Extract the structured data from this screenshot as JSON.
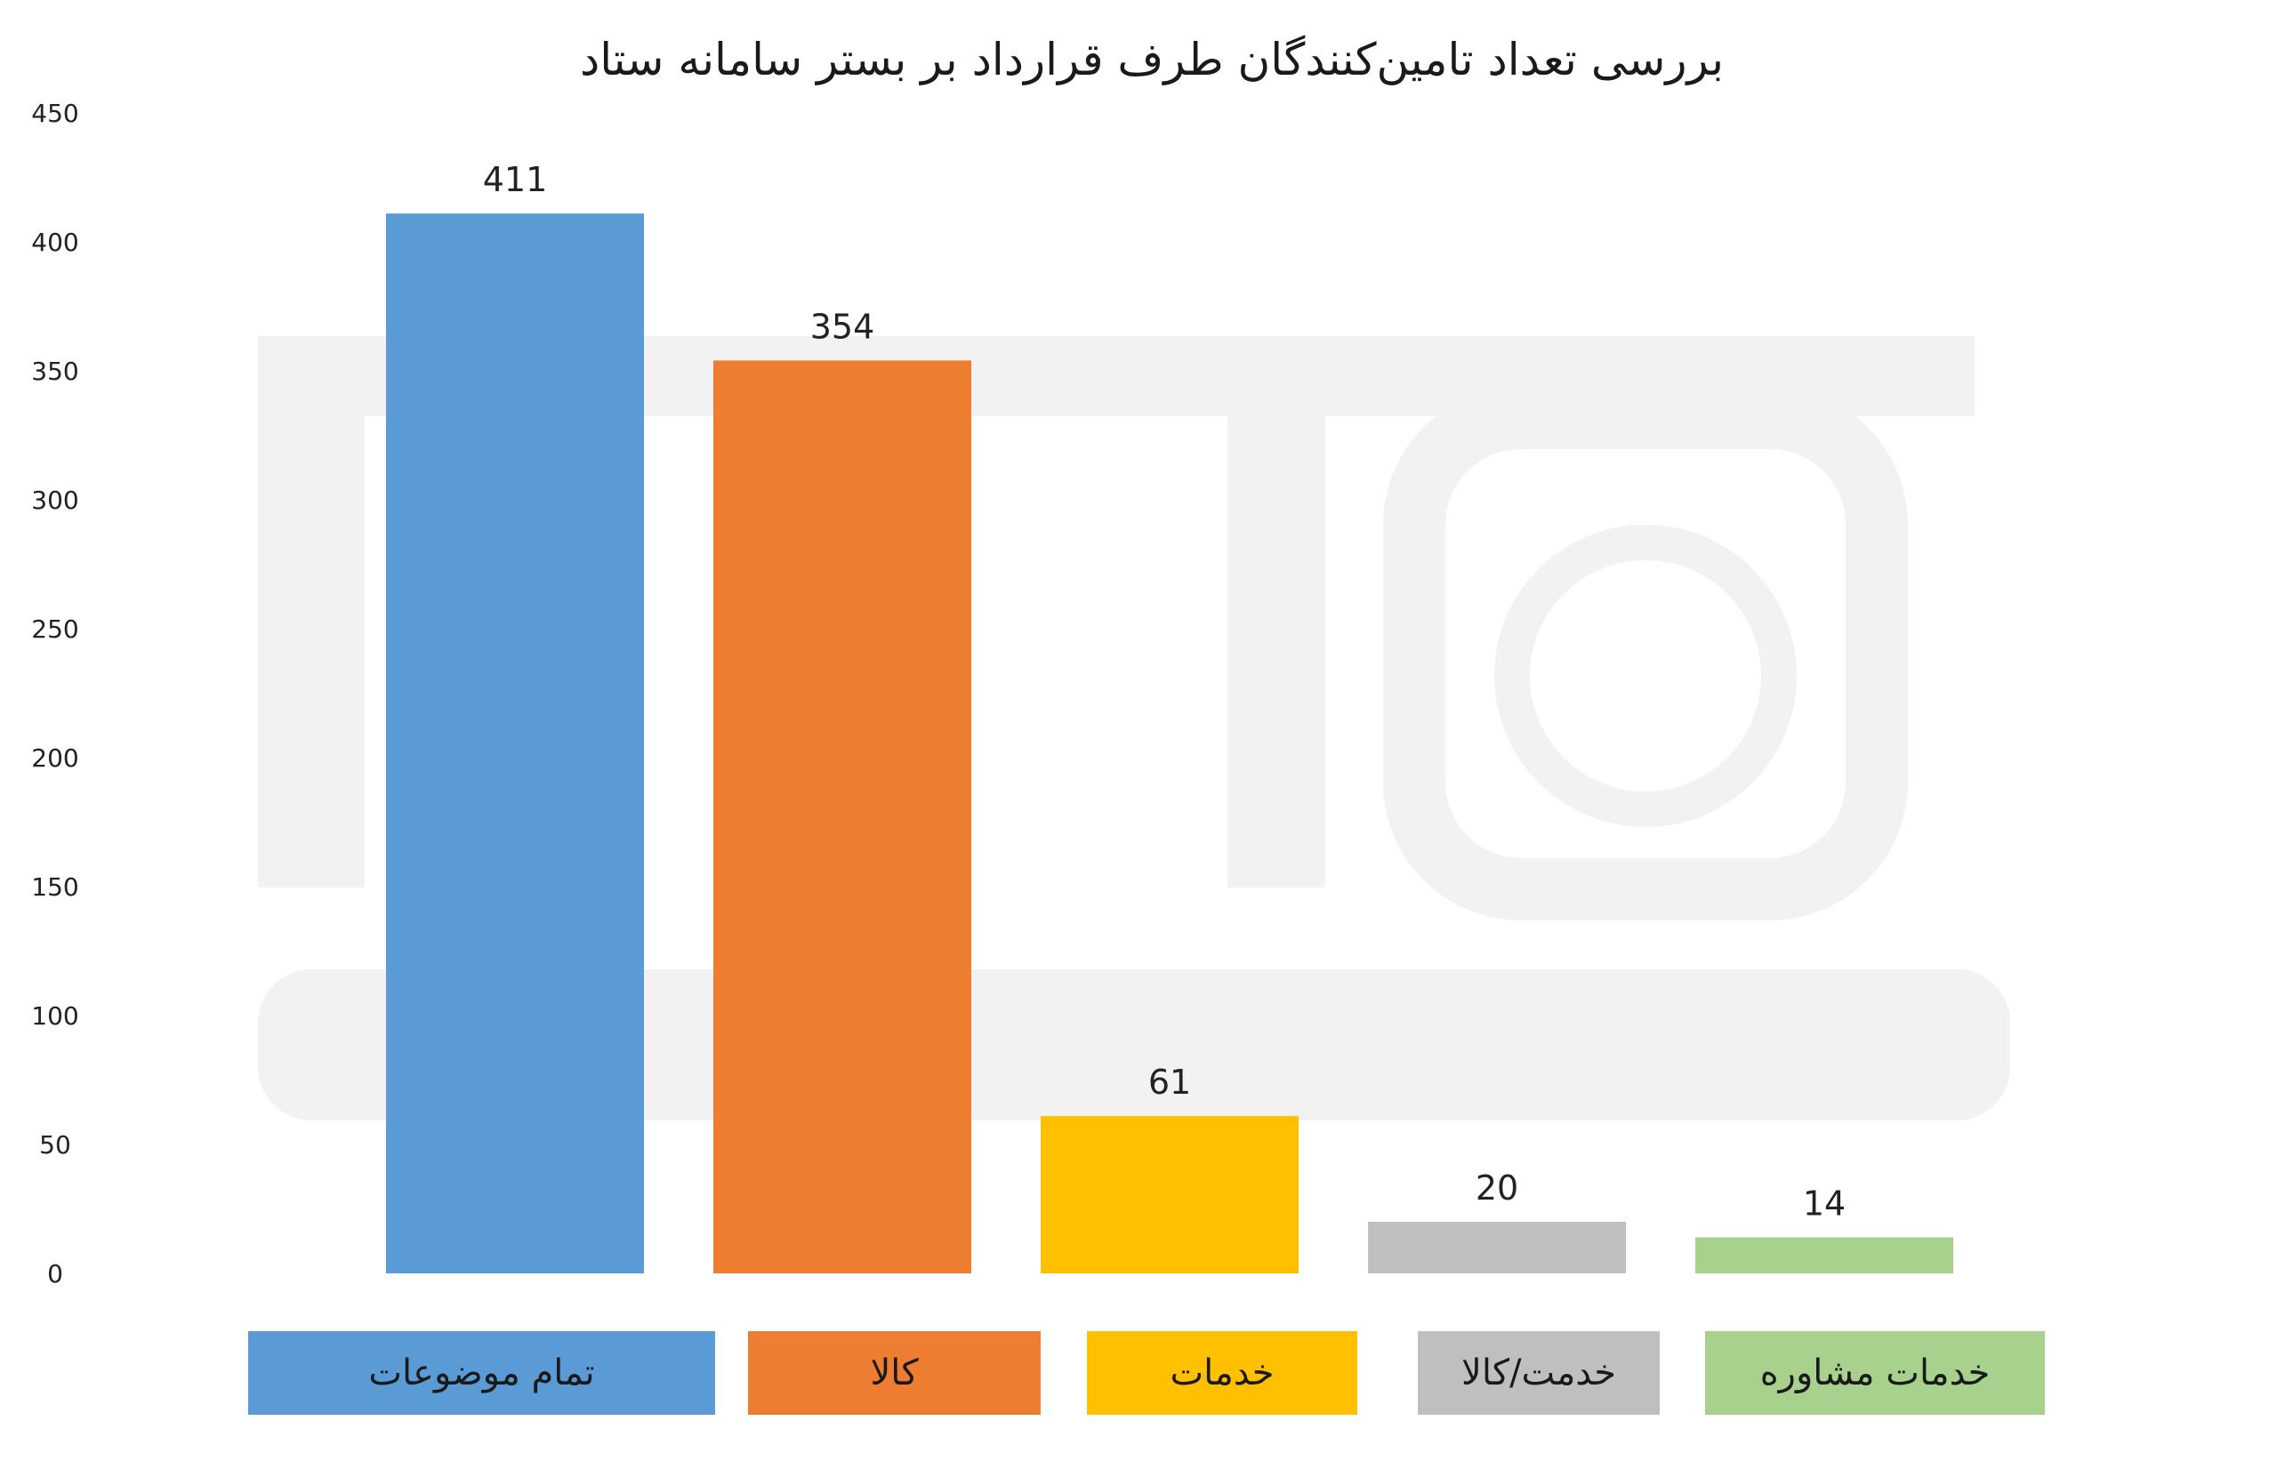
{
  "chart_data": {
    "type": "bar",
    "title": "بررسی تعداد تامین‌کنندگان طرف قرارداد بر بستر سامانه ستاد",
    "categories": [
      "تمام موضوعات",
      "کالا",
      "خدمات",
      "خدمت/کالا",
      "خدمات مشاوره"
    ],
    "values": [
      411,
      354,
      61,
      20,
      14
    ],
    "colors": [
      "#5B9BD5",
      "#ED7D31",
      "#FFC000",
      "#BFBFBF",
      "#A9D18E"
    ],
    "ylim": [
      0,
      450
    ],
    "yticks": [
      0,
      50,
      100,
      150,
      200,
      250,
      300,
      350,
      400,
      450
    ],
    "grid": false,
    "legend_position": "bottom"
  }
}
